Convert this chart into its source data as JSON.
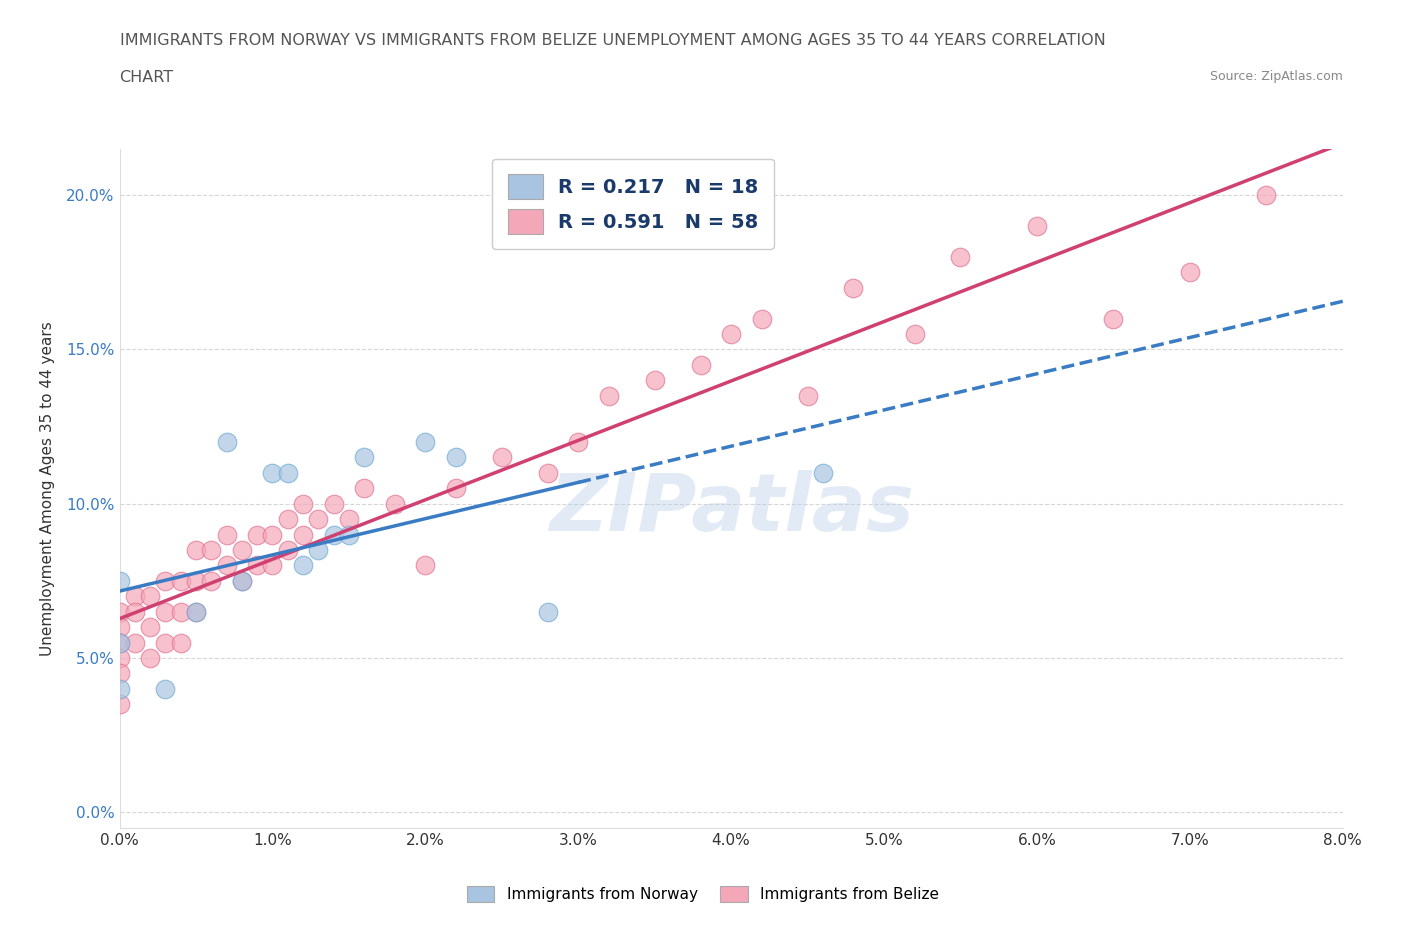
{
  "title_line1": "IMMIGRANTS FROM NORWAY VS IMMIGRANTS FROM BELIZE UNEMPLOYMENT AMONG AGES 35 TO 44 YEARS CORRELATION",
  "title_line2": "CHART",
  "source_text": "Source: ZipAtlas.com",
  "ylabel": "Unemployment Among Ages 35 to 44 years",
  "xlim": [
    0.0,
    0.08
  ],
  "ylim": [
    -0.005,
    0.215
  ],
  "norway_color": "#a8c4e0",
  "norway_edge_color": "#6aaad4",
  "belize_color": "#f4a7b9",
  "belize_edge_color": "#e07090",
  "norway_line_color": "#3a7cc4",
  "belize_line_color": "#d04070",
  "norway_R": 0.217,
  "norway_N": 18,
  "belize_R": 0.591,
  "belize_N": 58,
  "watermark": "ZIPatlas",
  "norway_scatter_x": [
    0.0,
    0.0,
    0.0,
    0.003,
    0.005,
    0.007,
    0.008,
    0.01,
    0.011,
    0.012,
    0.013,
    0.014,
    0.015,
    0.016,
    0.02,
    0.022,
    0.028,
    0.046
  ],
  "norway_scatter_y": [
    0.04,
    0.055,
    0.075,
    0.04,
    0.065,
    0.12,
    0.075,
    0.11,
    0.11,
    0.08,
    0.085,
    0.09,
    0.09,
    0.115,
    0.12,
    0.115,
    0.065,
    0.11
  ],
  "belize_scatter_x": [
    0.0,
    0.0,
    0.0,
    0.0,
    0.0,
    0.0,
    0.001,
    0.001,
    0.001,
    0.002,
    0.002,
    0.002,
    0.003,
    0.003,
    0.003,
    0.004,
    0.004,
    0.004,
    0.005,
    0.005,
    0.005,
    0.006,
    0.006,
    0.007,
    0.007,
    0.008,
    0.008,
    0.009,
    0.009,
    0.01,
    0.01,
    0.011,
    0.011,
    0.012,
    0.012,
    0.013,
    0.014,
    0.015,
    0.016,
    0.018,
    0.02,
    0.022,
    0.025,
    0.028,
    0.03,
    0.032,
    0.035,
    0.038,
    0.04,
    0.042,
    0.045,
    0.048,
    0.052,
    0.055,
    0.06,
    0.065,
    0.07,
    0.075
  ],
  "belize_scatter_y": [
    0.065,
    0.06,
    0.055,
    0.05,
    0.045,
    0.035,
    0.07,
    0.065,
    0.055,
    0.07,
    0.06,
    0.05,
    0.075,
    0.065,
    0.055,
    0.075,
    0.065,
    0.055,
    0.085,
    0.075,
    0.065,
    0.085,
    0.075,
    0.09,
    0.08,
    0.085,
    0.075,
    0.09,
    0.08,
    0.09,
    0.08,
    0.095,
    0.085,
    0.1,
    0.09,
    0.095,
    0.1,
    0.095,
    0.105,
    0.1,
    0.08,
    0.105,
    0.115,
    0.11,
    0.12,
    0.135,
    0.14,
    0.145,
    0.155,
    0.16,
    0.135,
    0.17,
    0.155,
    0.18,
    0.19,
    0.16,
    0.175,
    0.2
  ]
}
